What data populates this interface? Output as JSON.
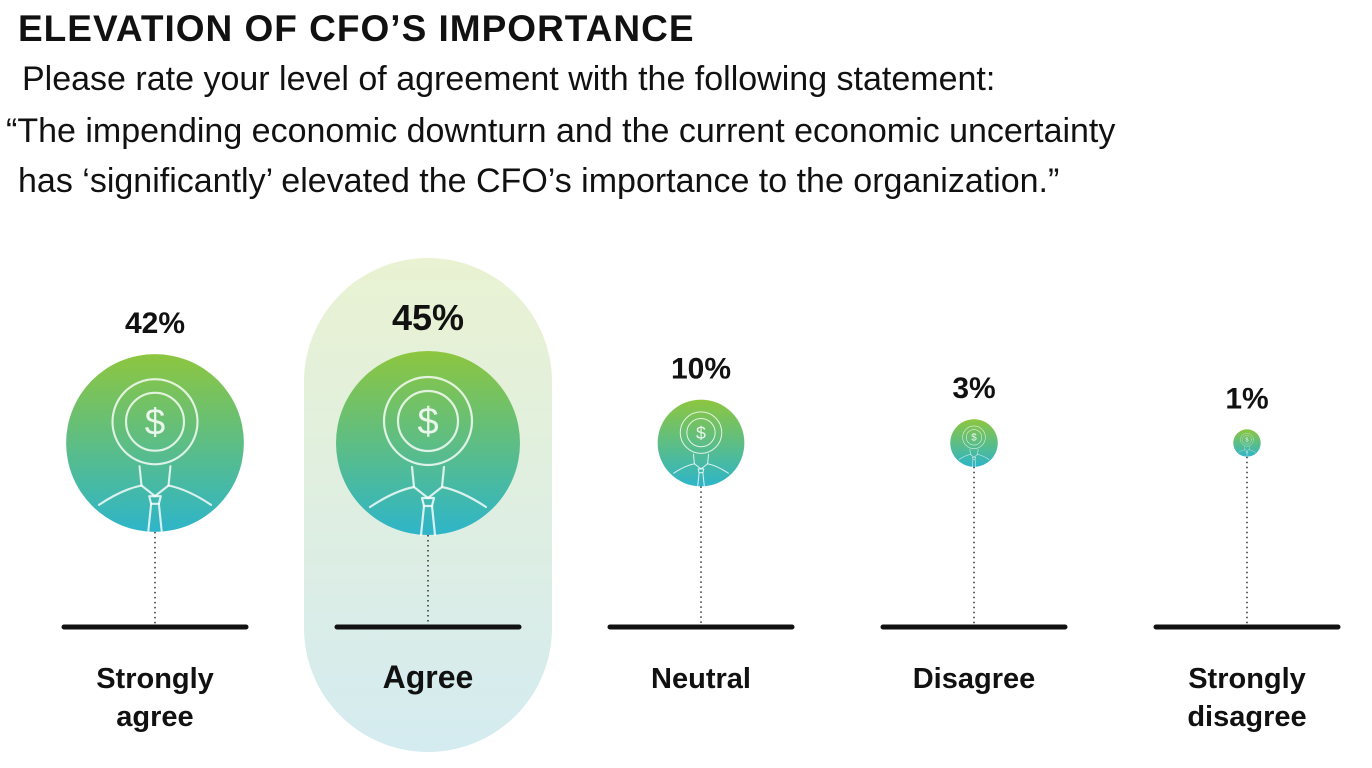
{
  "header": {
    "title": "ELEVATION OF CFO’S IMPORTANCE",
    "prompt": "Please rate your level of agreement with the following statement:",
    "statement_line1": "“The impending economic downturn and the current economic uncertainty",
    "statement_line2": "has ‘significantly’ elevated the CFO’s importance to the organization.”"
  },
  "chart_data": {
    "type": "bar",
    "title": "ELEVATION OF CFO’S IMPORTANCE",
    "categories": [
      "Strongly agree",
      "Agree",
      "Neutral",
      "Disagree",
      "Strongly disagree"
    ],
    "category_lines": [
      [
        "Strongly",
        "agree"
      ],
      [
        "Agree"
      ],
      [
        "Neutral"
      ],
      [
        "Disagree"
      ],
      [
        "Strongly",
        "disagree"
      ]
    ],
    "values": [
      42,
      45,
      10,
      3,
      1
    ],
    "value_labels": [
      "42%",
      "45%",
      "10%",
      "3%",
      "1%"
    ],
    "highlighted": "Agree",
    "unit": "%",
    "colors": {
      "top": "#8dc63f",
      "bottom": "#2eb5c9",
      "highlight_top": "#e9f2d2",
      "highlight_bottom": "#d4ebf0",
      "baseline": "#111111"
    }
  }
}
